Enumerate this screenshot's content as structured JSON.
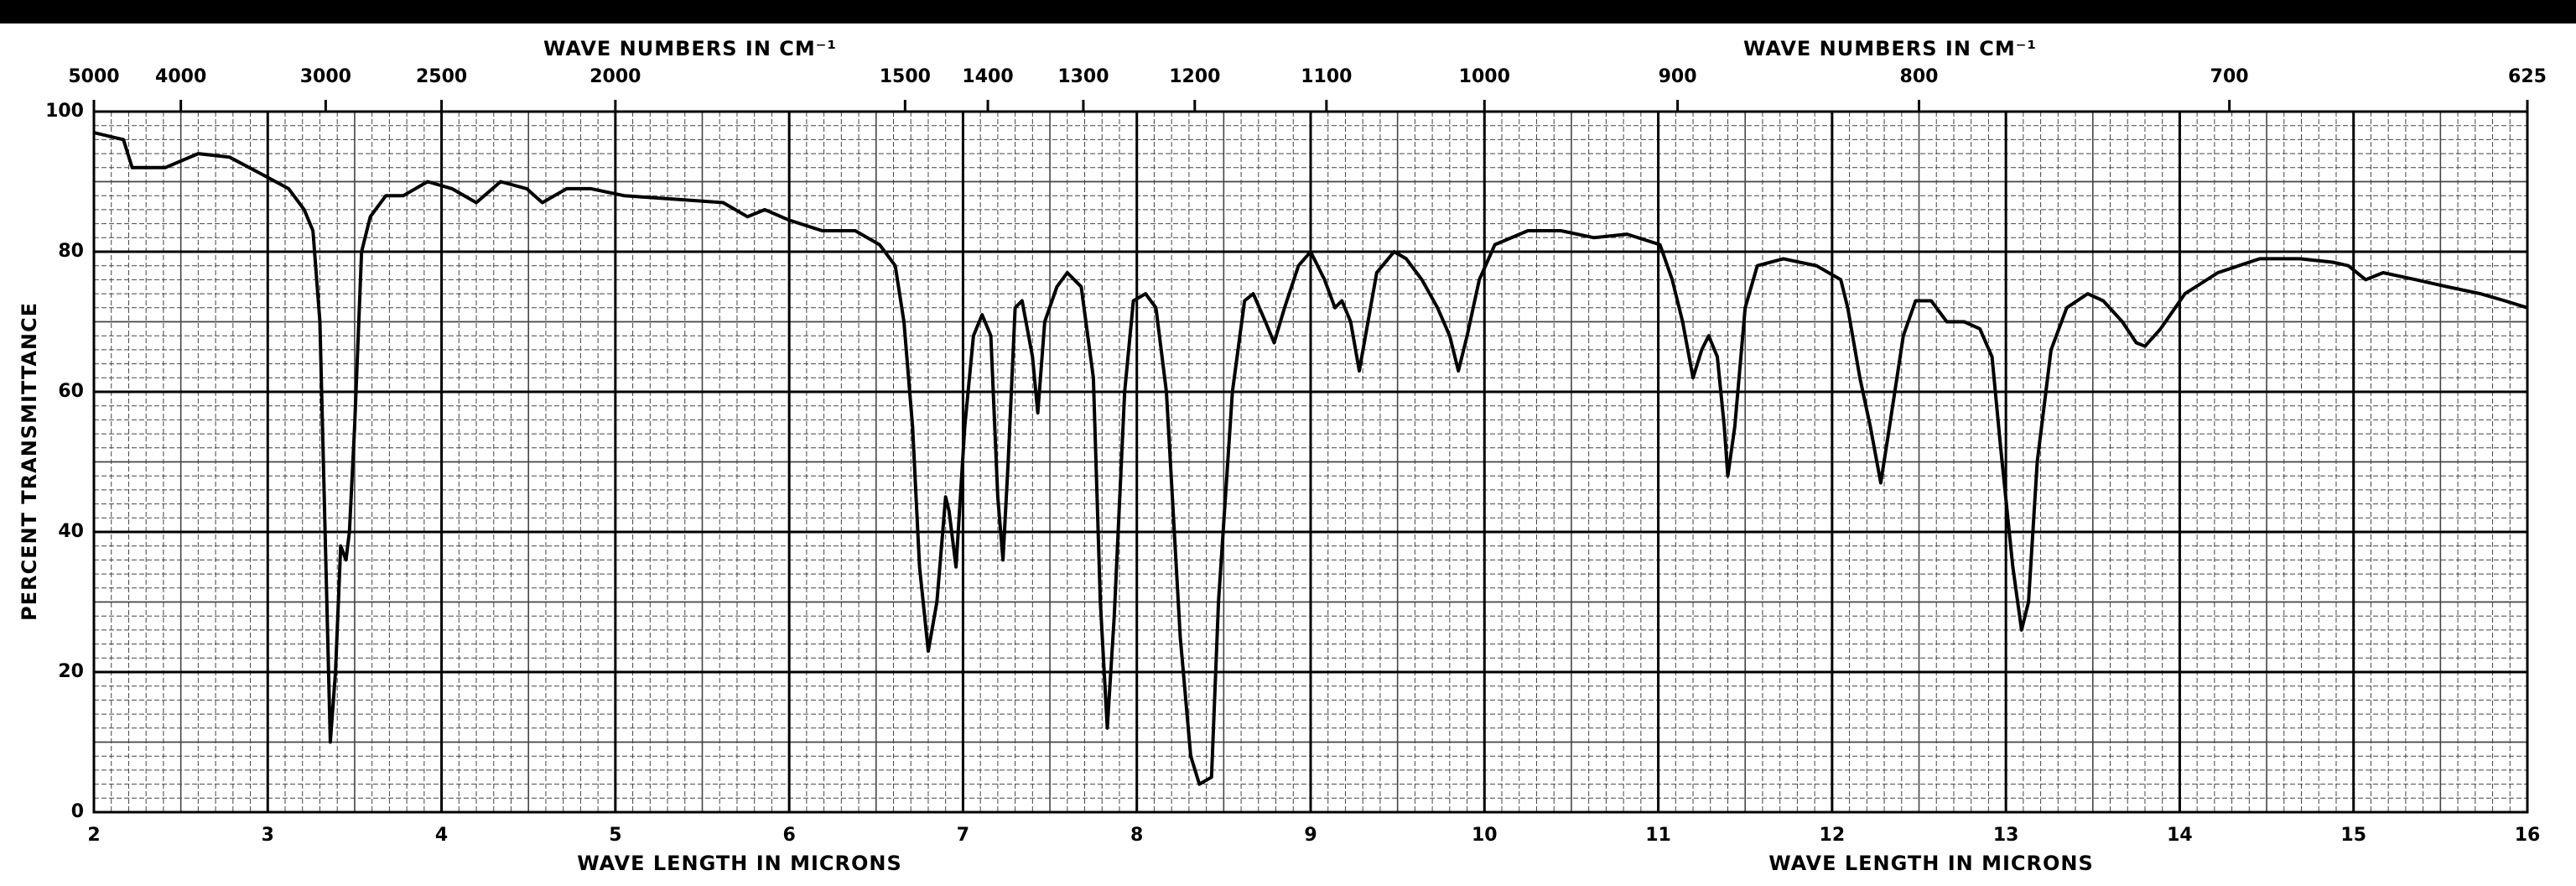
{
  "chart_data": {
    "type": "line",
    "x2labels": [
      "WAVE NUMBERS IN CM⁻¹",
      "WAVE NUMBERS IN CM⁻¹"
    ],
    "xlabels": [
      "WAVE LENGTH IN MICRONS",
      "WAVE LENGTH IN MICRONS"
    ],
    "ylabel": "PERCENT TRANSMITTANCE",
    "color": "#000000",
    "xlim": [
      2,
      16
    ],
    "xticks": [
      2,
      3,
      4,
      5,
      6,
      7,
      8,
      9,
      10,
      11,
      12,
      13,
      14,
      15,
      16
    ],
    "x2scale": "reciprocal",
    "x2lim": [
      5000,
      625
    ],
    "x2ticks": [
      5000,
      4000,
      3000,
      2500,
      2000,
      1500,
      1400,
      1300,
      1200,
      1100,
      1000,
      900,
      800,
      700,
      625
    ],
    "ylim": [
      0,
      100
    ],
    "yticks": [
      0,
      20,
      40,
      60,
      80,
      100
    ],
    "grid": true,
    "x": [
      2.0,
      2.17,
      2.22,
      2.41,
      2.6,
      2.78,
      2.97,
      3.12,
      3.21,
      3.26,
      3.3,
      3.33,
      3.36,
      3.39,
      3.42,
      3.45,
      3.47,
      3.5,
      3.54,
      3.59,
      3.68,
      3.78,
      3.92,
      4.06,
      4.2,
      4.34,
      4.49,
      4.58,
      4.72,
      4.86,
      5.05,
      5.34,
      5.62,
      5.76,
      5.86,
      6.0,
      6.19,
      6.38,
      6.52,
      6.61,
      6.66,
      6.71,
      6.75,
      6.8,
      6.85,
      6.9,
      6.92,
      6.96,
      7.01,
      7.06,
      7.11,
      7.16,
      7.2,
      7.23,
      7.26,
      7.3,
      7.34,
      7.4,
      7.43,
      7.47,
      7.54,
      7.6,
      7.68,
      7.75,
      7.79,
      7.83,
      7.87,
      7.93,
      7.98,
      8.05,
      8.11,
      8.17,
      8.25,
      8.31,
      8.36,
      8.43,
      8.47,
      8.55,
      8.62,
      8.67,
      8.74,
      8.79,
      8.85,
      8.93,
      9.0,
      9.08,
      9.14,
      9.18,
      9.23,
      9.28,
      9.33,
      9.38,
      9.48,
      9.55,
      9.64,
      9.73,
      9.8,
      9.85,
      9.9,
      9.97,
      10.06,
      10.25,
      10.44,
      10.63,
      10.82,
      11.01,
      11.08,
      11.14,
      11.2,
      11.25,
      11.29,
      11.34,
      11.38,
      11.4,
      11.44,
      11.5,
      11.57,
      11.72,
      11.91,
      12.05,
      12.09,
      12.16,
      12.22,
      12.28,
      12.33,
      12.41,
      12.48,
      12.57,
      12.66,
      12.76,
      12.85,
      12.92,
      12.97,
      13.04,
      13.09,
      13.13,
      13.18,
      13.26,
      13.35,
      13.47,
      13.56,
      13.67,
      13.75,
      13.8,
      13.89,
      14.03,
      14.22,
      14.46,
      14.69,
      14.88,
      14.97,
      15.07,
      15.17,
      15.36,
      15.54,
      15.73,
      15.87,
      16.0
    ],
    "values": [
      97,
      96,
      92,
      92,
      94,
      93.5,
      91,
      89,
      86,
      83,
      70,
      40,
      10,
      20,
      38,
      36,
      40,
      55,
      80,
      85,
      88,
      88,
      90,
      89,
      87,
      90,
      89,
      87,
      89,
      89,
      88,
      87.5,
      87,
      85,
      86,
      84.5,
      83,
      83,
      81,
      78,
      70,
      55,
      35,
      23,
      30,
      45,
      43,
      35,
      55,
      68,
      71,
      68,
      45,
      36,
      50,
      72,
      73,
      65,
      57,
      70,
      75,
      77,
      75,
      62,
      30,
      12,
      28,
      60,
      73,
      74,
      72,
      60,
      25,
      8,
      4,
      5,
      30,
      60,
      73,
      74,
      70,
      67,
      72,
      78,
      80,
      76,
      72,
      73,
      70,
      63,
      70,
      77,
      80,
      79,
      76,
      72,
      68,
      63,
      68,
      76,
      81,
      83,
      83,
      82,
      82.5,
      81,
      76,
      70,
      62,
      66,
      68,
      65,
      55,
      48,
      55,
      72,
      78,
      79,
      78,
      76,
      72,
      62,
      55,
      47,
      55,
      68,
      73,
      73,
      70,
      70,
      69,
      65,
      52,
      35,
      26,
      30,
      50,
      66,
      72,
      74,
      73,
      70,
      67,
      66.5,
      69,
      74,
      77,
      79,
      79,
      78.5,
      78,
      76,
      77,
      76,
      75,
      74,
      73,
      72
    ]
  }
}
